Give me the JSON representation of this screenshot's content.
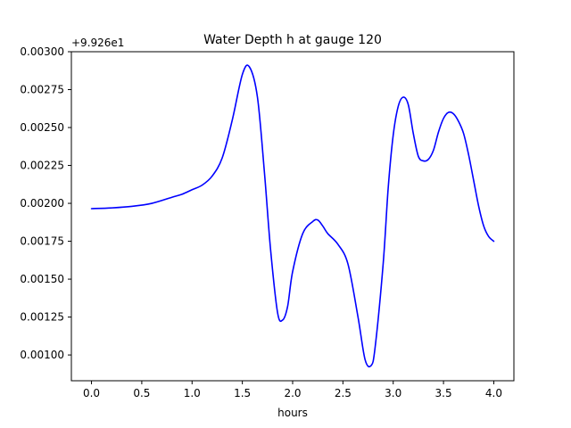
{
  "chart_data": {
    "type": "line",
    "title": "Water Depth h at gauge 120",
    "xlabel": "hours",
    "ylabel": "",
    "offset_label": "+9.926e1",
    "xlim": [
      -0.2,
      4.2
    ],
    "ylim": [
      0.00083,
      0.003
    ],
    "xticks": [
      0.0,
      0.5,
      1.0,
      1.5,
      2.0,
      2.5,
      3.0,
      3.5,
      4.0
    ],
    "xtick_labels": [
      "0.0",
      "0.5",
      "1.0",
      "1.5",
      "2.0",
      "2.5",
      "3.0",
      "3.5",
      "4.0"
    ],
    "yticks": [
      0.001,
      0.00125,
      0.0015,
      0.00175,
      0.002,
      0.00225,
      0.0025,
      0.00275,
      0.003
    ],
    "ytick_labels": [
      "0.00100",
      "0.00125",
      "0.00150",
      "0.00175",
      "0.00200",
      "0.00225",
      "0.00250",
      "0.00275",
      "0.00300"
    ],
    "grid": false,
    "line_color": "#0000ff",
    "series": [
      {
        "x": [
          0.0,
          0.2,
          0.4,
          0.6,
          0.8,
          0.9,
          1.0,
          1.1,
          1.2,
          1.3,
          1.4,
          1.5,
          1.57,
          1.65,
          1.72,
          1.78,
          1.85,
          1.9,
          1.95,
          2.0,
          2.1,
          2.2,
          2.25,
          2.3,
          2.35,
          2.45,
          2.55,
          2.65,
          2.72,
          2.78,
          2.82,
          2.9,
          2.95,
          3.0,
          3.05,
          3.1,
          3.15,
          3.2,
          3.25,
          3.3,
          3.35,
          3.4,
          3.45,
          3.5,
          3.55,
          3.6,
          3.65,
          3.7,
          3.75,
          3.8,
          3.85,
          3.9,
          3.95,
          4.0
        ],
        "y": [
          0.001965,
          0.00197,
          0.00198,
          0.002,
          0.00204,
          0.00206,
          0.00209,
          0.00212,
          0.00218,
          0.0023,
          0.00255,
          0.00285,
          0.0029,
          0.0027,
          0.0022,
          0.0017,
          0.00128,
          0.00123,
          0.00132,
          0.00155,
          0.0018,
          0.00188,
          0.00189,
          0.00185,
          0.0018,
          0.00173,
          0.0016,
          0.00125,
          0.00097,
          0.00093,
          0.00105,
          0.0016,
          0.0021,
          0.00245,
          0.00264,
          0.0027,
          0.00265,
          0.00246,
          0.00231,
          0.00228,
          0.00229,
          0.00235,
          0.00247,
          0.00256,
          0.0026,
          0.00259,
          0.00254,
          0.00246,
          0.00232,
          0.00215,
          0.00198,
          0.00185,
          0.00178,
          0.00175
        ]
      }
    ]
  }
}
